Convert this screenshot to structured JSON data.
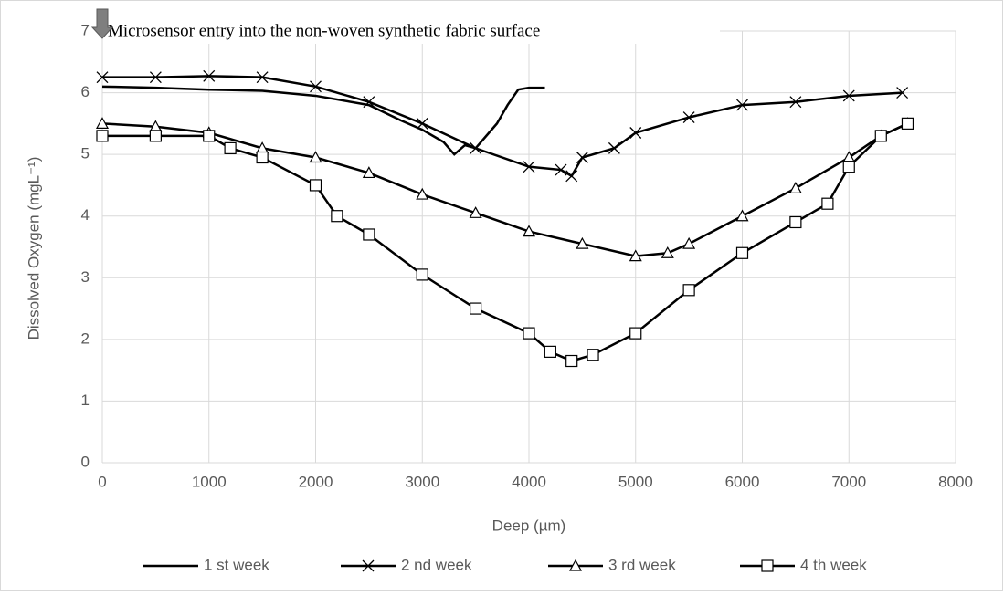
{
  "chart_data": {
    "type": "line",
    "annotation": "Microsensor entry into the non-woven synthetic fabric surface",
    "xlabel": "Deep (µm)",
    "ylabel": "Dissolved Oxygen (mgL⁻¹)",
    "xlim": [
      0,
      8000
    ],
    "xticks": [
      0,
      1000,
      2000,
      3000,
      4000,
      5000,
      6000,
      7000,
      8000
    ],
    "ylim": [
      0,
      7
    ],
    "yticks": [
      0,
      1,
      2,
      3,
      4,
      5,
      6,
      7
    ],
    "grid": true,
    "legend": "bottom",
    "series": [
      {
        "name": "1 st week",
        "color": "#000000",
        "marker": "none",
        "x": [
          0,
          500,
          1000,
          1500,
          2000,
          2500,
          2800,
          3000,
          3200,
          3300,
          3400,
          3500,
          3600,
          3700,
          3800,
          3900,
          4000,
          4150
        ],
        "values": [
          6.1,
          6.08,
          6.05,
          6.03,
          5.95,
          5.8,
          5.55,
          5.4,
          5.2,
          5.0,
          5.15,
          5.1,
          5.3,
          5.5,
          5.8,
          6.05,
          6.08,
          6.08
        ]
      },
      {
        "name": "2 nd week",
        "color": "#000000",
        "marker": "x",
        "x": [
          0,
          500,
          1000,
          1500,
          2000,
          2500,
          3000,
          3500,
          4000,
          4300,
          4400,
          4500,
          4800,
          5000,
          5500,
          6000,
          6500,
          7000,
          7500
        ],
        "values": [
          6.25,
          6.25,
          6.27,
          6.25,
          6.1,
          5.85,
          5.5,
          5.1,
          4.8,
          4.75,
          4.65,
          4.95,
          5.1,
          5.35,
          5.6,
          5.8,
          5.85,
          5.95,
          6.0
        ]
      },
      {
        "name": "3 rd week",
        "color": "#000000",
        "marker": "triangle",
        "x": [
          0,
          500,
          1000,
          1500,
          2000,
          2500,
          3000,
          3500,
          4000,
          4500,
          5000,
          5300,
          5500,
          6000,
          6500,
          7000,
          7300,
          7550
        ],
        "values": [
          5.5,
          5.45,
          5.35,
          5.1,
          4.95,
          4.7,
          4.35,
          4.05,
          3.75,
          3.55,
          3.35,
          3.4,
          3.55,
          4.0,
          4.45,
          4.95,
          5.3,
          5.5
        ]
      },
      {
        "name": "4 th week",
        "color": "#000000",
        "marker": "square",
        "x": [
          0,
          500,
          1000,
          1200,
          1500,
          2000,
          2200,
          2500,
          3000,
          3500,
          4000,
          4200,
          4400,
          4600,
          5000,
          5500,
          6000,
          6500,
          6800,
          7000,
          7300,
          7550
        ],
        "values": [
          5.3,
          5.3,
          5.3,
          5.1,
          4.95,
          4.5,
          4.0,
          3.7,
          3.05,
          2.5,
          2.1,
          1.8,
          1.65,
          1.75,
          2.1,
          2.8,
          3.4,
          3.9,
          4.2,
          4.8,
          5.3,
          5.5
        ]
      }
    ]
  }
}
